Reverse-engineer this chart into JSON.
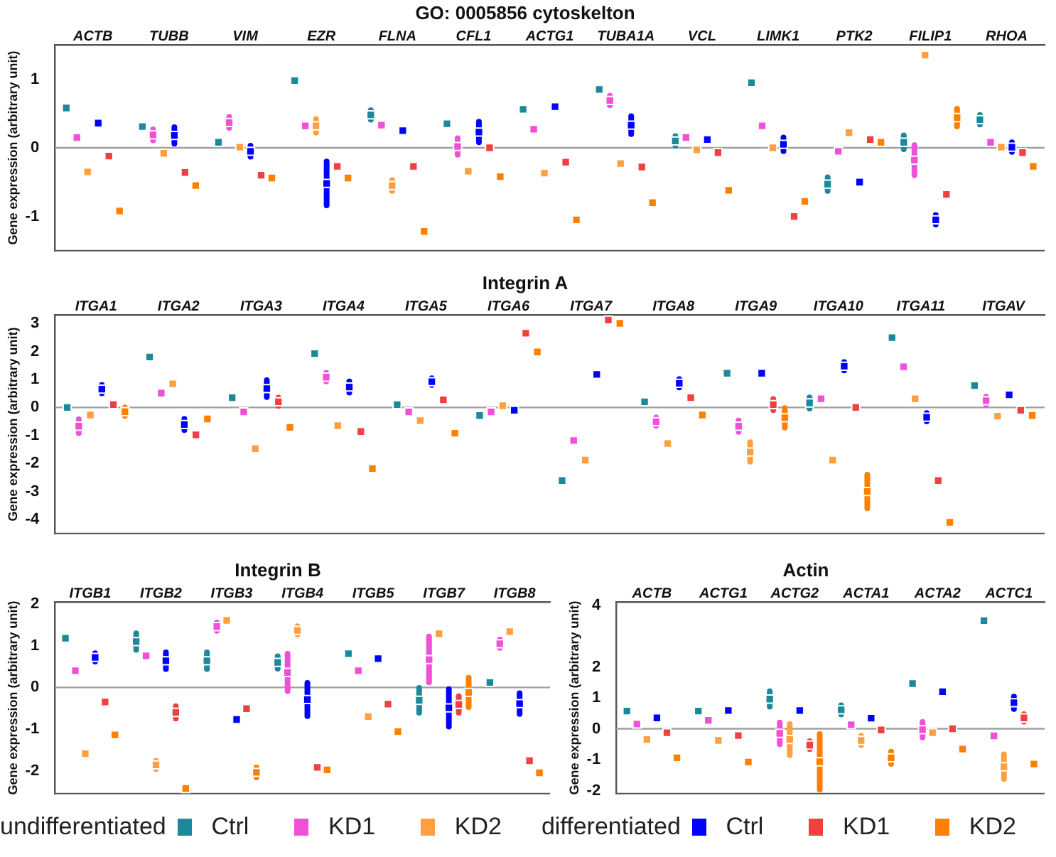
{
  "chart_data": [
    {
      "type": "scatter",
      "title": "GO: 0005856 cytoskelton",
      "ylabel": "Gene expression (arbitrary unit)",
      "marker": "square",
      "ylim": [
        -1.5,
        1.5
      ],
      "yticks": [
        -1,
        0,
        1
      ],
      "categories": [
        "ACTB",
        "TUBB",
        "VIM",
        "EZR",
        "FLNA",
        "CFL1",
        "ACTG1",
        "TUBA1A",
        "VCL",
        "LIMK1",
        "PTK2",
        "FILIP1",
        "RHOA"
      ],
      "ref_lines": [
        {
          "axis": "y",
          "value": 0,
          "color": "#a0a0a0"
        }
      ],
      "legend": "bottom",
      "annotations": [
        "undifferentiated",
        "differentiated"
      ],
      "series": [
        {
          "name": "Ctrl",
          "color": "#1a8a9a",
          "values": [
            0.58,
            0.31,
            0.08,
            0.98,
            0.48,
            0.35,
            0.56,
            0.85,
            0.1,
            0.95,
            -0.53,
            0.08,
            0.41
          ],
          "errors": [
            null,
            null,
            null,
            null,
            0.07,
            null,
            null,
            null,
            0.07,
            null,
            0.1,
            0.1,
            0.07
          ]
        },
        {
          "name": "KD1",
          "color": "#f050d8",
          "values": [
            0.15,
            0.19,
            0.37,
            0.32,
            0.33,
            0.02,
            0.27,
            0.69,
            0.15,
            0.32,
            -0.05,
            -0.18,
            0.08
          ],
          "errors": [
            null,
            0.08,
            0.08,
            null,
            null,
            0.12,
            null,
            0.07,
            null,
            null,
            null,
            0.22,
            null
          ]
        },
        {
          "name": "KD2",
          "color": "#ffa040",
          "values": [
            -0.35,
            -0.08,
            0.01,
            0.32,
            -0.55,
            -0.34,
            -0.37,
            -0.23,
            -0.03,
            0.0,
            0.22,
            1.35,
            0.01
          ],
          "errors": [
            null,
            null,
            null,
            0.1,
            0.08,
            null,
            null,
            null,
            null,
            null,
            null,
            null,
            null
          ]
        },
        {
          "name": "Ctrl",
          "color": "#0000ff",
          "values": [
            0.36,
            0.18,
            -0.05,
            -0.52,
            0.25,
            0.23,
            0.6,
            0.33,
            0.12,
            0.05,
            -0.5,
            -1.05,
            0.01
          ],
          "errors": [
            null,
            0.12,
            0.08,
            0.32,
            null,
            0.15,
            null,
            0.13,
            null,
            0.1,
            null,
            0.07,
            0.07
          ]
        },
        {
          "name": "KD1",
          "color": "#f04040",
          "values": [
            -0.12,
            -0.36,
            -0.4,
            -0.27,
            -0.27,
            0.0,
            -0.21,
            -0.28,
            -0.07,
            -1.0,
            0.12,
            -0.68,
            -0.07
          ]
        },
        {
          "name": "KD2",
          "color": "#ff7f00",
          "values": [
            -0.92,
            -0.55,
            -0.44,
            -0.44,
            -1.22,
            -0.42,
            -1.05,
            -0.8,
            -0.62,
            -0.78,
            0.08,
            0.44,
            -0.27
          ],
          "errors": [
            null,
            null,
            null,
            null,
            null,
            null,
            null,
            null,
            null,
            null,
            null,
            0.13,
            null
          ]
        }
      ]
    },
    {
      "type": "scatter",
      "title": "Integrin A",
      "ylabel": "Gene expression (arbitrary unit)",
      "marker": "square",
      "ylim": [
        -4.5,
        3.3
      ],
      "yticks": [
        -4,
        -3,
        -2,
        -1,
        0,
        1,
        2,
        3
      ],
      "categories": [
        "ITGA1",
        "ITGA2",
        "ITGA3",
        "ITGA4",
        "ITGA5",
        "ITGA6",
        "ITGA7",
        "ITGA8",
        "ITGA9",
        "ITGA10",
        "ITGA11",
        "ITGAV"
      ],
      "ref_lines": [
        {
          "axis": "y",
          "value": 0,
          "color": "#a0a0a0"
        }
      ],
      "series": [
        {
          "color": "#1a8a9a",
          "values": [
            0,
            1.8,
            0.35,
            1.92,
            0.1,
            -0.29,
            -2.61,
            0.2,
            1.22,
            0.16,
            2.49,
            0.78
          ],
          "errors": [
            null,
            null,
            null,
            null,
            null,
            null,
            null,
            null,
            null,
            0.2,
            null,
            null
          ]
        },
        {
          "color": "#f050d8",
          "values": [
            -0.67,
            0.51,
            -0.16,
            1.08,
            -0.16,
            -0.16,
            -1.18,
            -0.51,
            -0.67,
            0.31,
            1.45,
            0.24
          ],
          "errors": [
            0.25,
            null,
            null,
            0.15,
            null,
            null,
            null,
            0.15,
            0.2,
            null,
            null,
            0.15
          ]
        },
        {
          "color": "#ffa040",
          "values": [
            -0.27,
            0.84,
            -1.47,
            -0.65,
            -0.47,
            0.06,
            -1.88,
            -1.29,
            -1.59,
            -1.88,
            0.31,
            -0.31
          ],
          "errors": [
            null,
            null,
            null,
            null,
            null,
            null,
            null,
            null,
            0.35,
            null,
            null,
            null
          ]
        },
        {
          "color": "#0000ff",
          "values": [
            0.65,
            -0.61,
            0.67,
            0.73,
            0.92,
            -0.1,
            1.18,
            0.86,
            1.22,
            1.47,
            -0.35,
            0.45
          ],
          "errors": [
            0.15,
            0.2,
            0.3,
            0.2,
            0.12,
            null,
            null,
            0.15,
            null,
            0.15,
            0.15,
            null
          ]
        },
        {
          "color": "#f04040",
          "values": [
            0.1,
            -0.98,
            0.2,
            -0.86,
            0.27,
            2.65,
            3.12,
            0.35,
            0.1,
            0.0,
            -2.61,
            -0.1
          ],
          "errors": [
            null,
            null,
            0.15,
            null,
            null,
            null,
            null,
            null,
            0.2,
            null,
            null,
            null
          ]
        },
        {
          "color": "#ff7f00",
          "values": [
            -0.15,
            -0.41,
            -0.71,
            -2.18,
            -0.92,
            1.98,
            3.0,
            -0.27,
            -0.37,
            -3.0,
            -4.1,
            -0.29
          ],
          "errors": [
            0.15,
            null,
            null,
            null,
            null,
            null,
            null,
            null,
            0.35,
            0.6,
            null,
            null
          ]
        }
      ]
    },
    {
      "type": "scatter",
      "title": "Integrin B",
      "ylabel": "Gene expression (arbitrary unit)",
      "marker": "square",
      "ylim": [
        -2.55,
        2.05
      ],
      "yticks": [
        -2,
        -1,
        0,
        1,
        2
      ],
      "categories": [
        "ITGB1",
        "ITGB2",
        "ITGB3",
        "ITGB4",
        "ITGB5",
        "ITGB7",
        "ITGB8"
      ],
      "ref_lines": [
        {
          "axis": "y",
          "value": 0,
          "color": "#a0a0a0"
        }
      ],
      "series": [
        {
          "color": "#1a8a9a",
          "values": [
            1.18,
            1.1,
            0.64,
            0.6,
            0.81,
            -0.31,
            0.12
          ],
          "errors": [
            null,
            0.2,
            0.2,
            0.15,
            null,
            0.3,
            null
          ]
        },
        {
          "color": "#f050d8",
          "values": [
            0.4,
            0.76,
            1.46,
            0.36,
            0.4,
            0.67,
            1.05
          ],
          "errors": [
            null,
            null,
            0.1,
            0.45,
            null,
            0.55,
            0.1
          ]
        },
        {
          "color": "#ffa040",
          "values": [
            -1.59,
            -1.86,
            1.61,
            1.37,
            -0.7,
            1.29,
            1.34
          ],
          "errors": [
            null,
            0.1,
            null,
            0.1,
            null,
            null,
            null
          ]
        },
        {
          "color": "#0000ff",
          "values": [
            0.72,
            0.64,
            -0.77,
            -0.29,
            0.69,
            -0.49,
            -0.39
          ],
          "errors": [
            0.1,
            0.2,
            null,
            0.4,
            null,
            0.45,
            0.25
          ]
        },
        {
          "color": "#f04040",
          "values": [
            -0.35,
            -0.6,
            -0.51,
            -1.92,
            -0.4,
            -0.41,
            -1.76
          ],
          "errors": [
            null,
            0.15,
            null,
            null,
            null,
            0.2,
            null
          ]
        },
        {
          "color": "#ff7f00",
          "values": [
            -1.14,
            -2.43,
            -2.04,
            -1.98,
            -1.06,
            -0.12,
            -2.05
          ],
          "errors": [
            null,
            null,
            0.12,
            null,
            null,
            0.35,
            null
          ]
        }
      ]
    },
    {
      "type": "scatter",
      "title": "Actin",
      "ylabel": "Gene expression (arbitrary unit)",
      "marker": "square",
      "ylim": [
        -2.1,
        4.1
      ],
      "yticks": [
        -2,
        -1,
        0,
        1,
        2,
        4
      ],
      "categories": [
        "ACTB",
        "ACTG1",
        "ACTG2",
        "ACTA1",
        "ACTA2",
        "ACTC1"
      ],
      "ref_lines": [
        {
          "axis": "y",
          "value": 0,
          "color": "#a0a0a0"
        }
      ],
      "series": [
        {
          "color": "#1a8a9a",
          "values": [
            0.57,
            0.57,
            0.96,
            0.61,
            1.46,
            3.5
          ],
          "errors": [
            null,
            null,
            0.25,
            0.15,
            null,
            null
          ]
        },
        {
          "color": "#f050d8",
          "values": [
            0.15,
            0.27,
            -0.15,
            0.13,
            -0.03,
            -0.23
          ],
          "errors": [
            null,
            null,
            0.35,
            null,
            0.25,
            null
          ]
        },
        {
          "color": "#ffa040",
          "values": [
            -0.35,
            -0.38,
            -0.35,
            -0.38,
            -0.13,
            -1.23
          ],
          "errors": [
            null,
            null,
            0.5,
            0.15,
            null,
            0.4
          ]
        },
        {
          "color": "#0000ff",
          "values": [
            0.35,
            0.59,
            0.59,
            0.34,
            1.2,
            0.84
          ],
          "errors": [
            null,
            null,
            null,
            null,
            null,
            0.2
          ]
        },
        {
          "color": "#f04040",
          "values": [
            -0.13,
            -0.22,
            -0.53,
            -0.04,
            0.0,
            0.35
          ],
          "errors": [
            null,
            null,
            0.13,
            null,
            null,
            0.12
          ]
        },
        {
          "color": "#ff7f00",
          "values": [
            -0.94,
            -1.08,
            -1.07,
            -0.94,
            -0.66,
            -1.14
          ],
          "errors": [
            null,
            null,
            0.9,
            0.2,
            null,
            null
          ]
        }
      ]
    }
  ]
}
